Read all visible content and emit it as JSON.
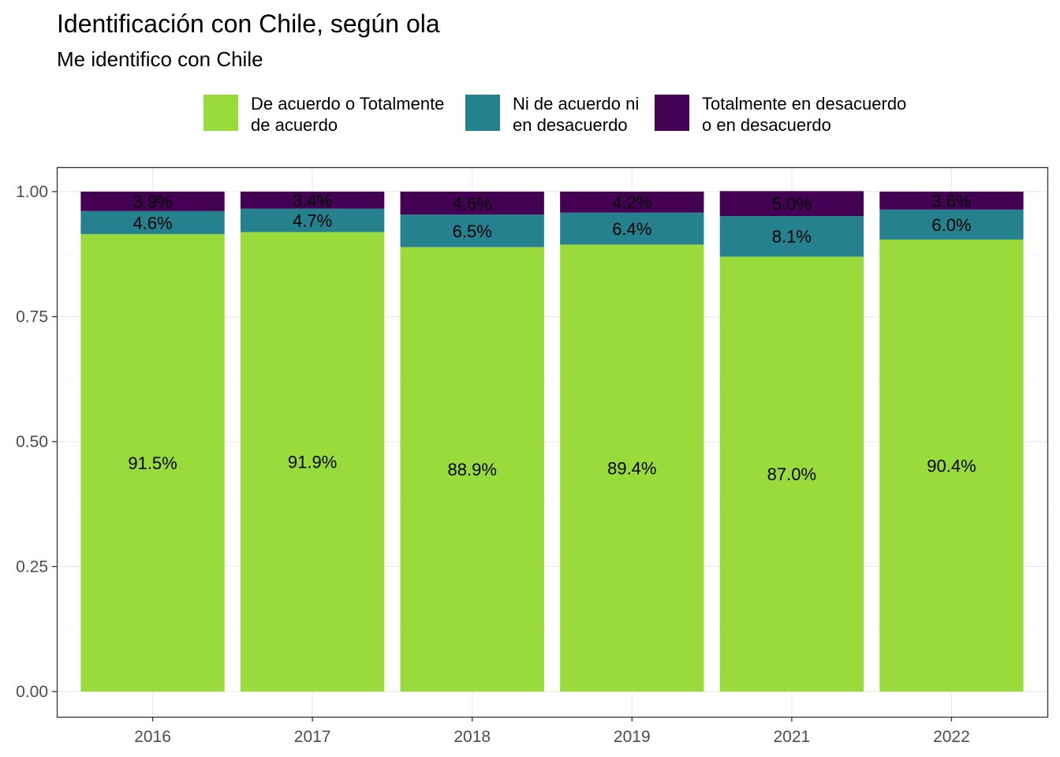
{
  "chart_data": {
    "type": "bar",
    "stacked": true,
    "title": "Identificación con Chile, según ola",
    "subtitle": "Me identifico con Chile",
    "xlabel": "",
    "ylabel": "",
    "categories": [
      "2016",
      "2017",
      "2018",
      "2019",
      "2021",
      "2022"
    ],
    "ylim": [
      0,
      1
    ],
    "yticks": [
      "0.00",
      "0.25",
      "0.50",
      "0.75",
      "1.00"
    ],
    "grid": true,
    "legend_position": "top",
    "series": [
      {
        "name": "De acuerdo o Totalmente\nde acuerdo",
        "color": "#9ADB3C",
        "values": [
          0.915,
          0.919,
          0.889,
          0.894,
          0.87,
          0.904
        ],
        "labels": [
          "91.5%",
          "91.9%",
          "88.9%",
          "89.4%",
          "87.0%",
          "90.4%"
        ]
      },
      {
        "name": "Ni de acuerdo ni\nen desacuerdo",
        "color": "#26818E",
        "values": [
          0.046,
          0.047,
          0.065,
          0.064,
          0.081,
          0.06
        ],
        "labels": [
          "4.6%",
          "4.7%",
          "6.5%",
          "6.4%",
          "8.1%",
          "6.0%"
        ]
      },
      {
        "name": "Totalmente en desacuerdo\no en desacuerdo",
        "color": "#440154",
        "values": [
          0.039,
          0.034,
          0.046,
          0.042,
          0.05,
          0.036
        ],
        "labels": [
          "3.9%",
          "3.4%",
          "4.6%",
          "4.2%",
          "5.0%",
          "3.6%"
        ]
      }
    ]
  }
}
